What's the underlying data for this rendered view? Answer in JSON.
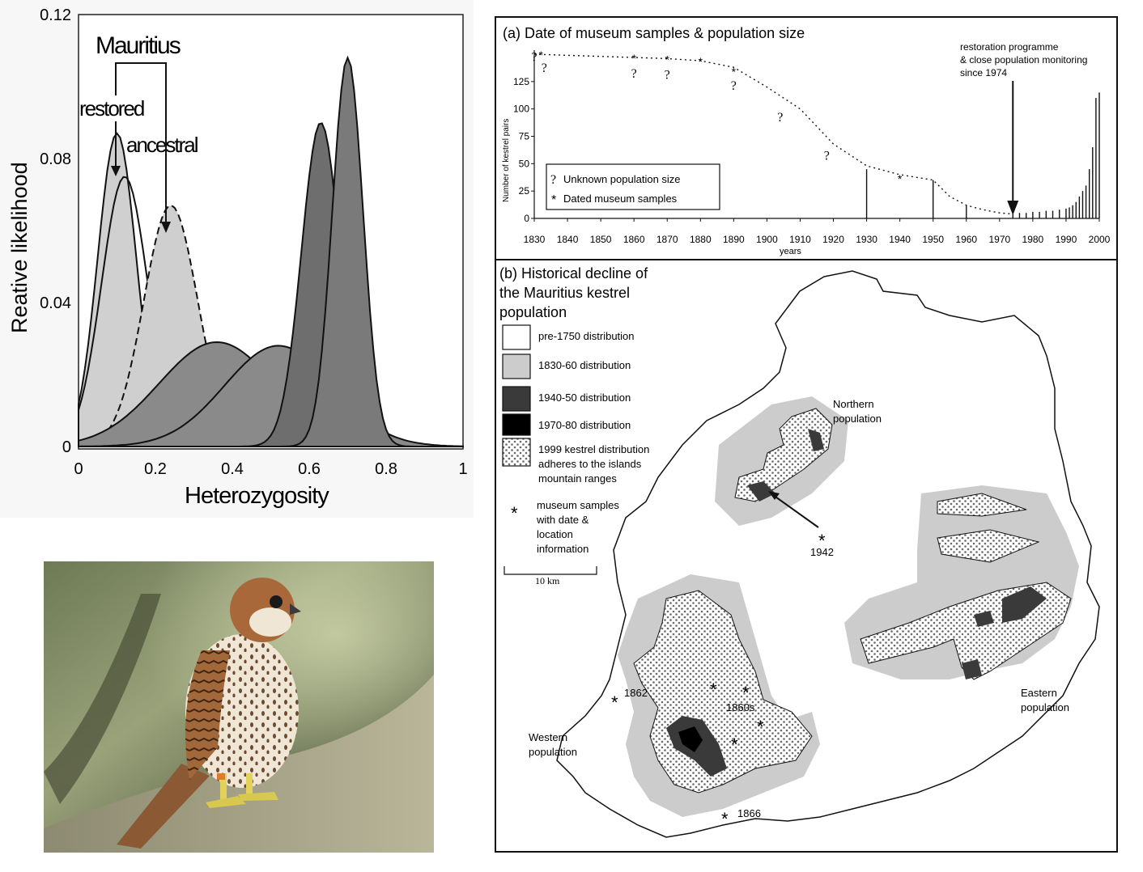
{
  "left_chart": {
    "chart_data": {
      "type": "area",
      "title": "",
      "xlabel": "Heterozygosity",
      "ylabel": "Reative likelihood",
      "xlim": [
        0,
        1
      ],
      "ylim": [
        0,
        0.12
      ],
      "x_ticks": [
        "0",
        "0.2",
        "0.4",
        "0.6",
        "0.8",
        "1"
      ],
      "y_ticks": [
        "0",
        "0.04",
        "0.08",
        "0.12"
      ],
      "series": [
        {
          "name": "restored",
          "peak_x": 0.1,
          "peak_y": 0.087,
          "color": "#d0d0d0"
        },
        {
          "name": "",
          "peak_x": 0.12,
          "peak_y": 0.075,
          "color": "none"
        },
        {
          "name": "ancestral",
          "peak_x": 0.24,
          "peak_y": 0.067,
          "color": "#cfcfcf",
          "dashed": true
        },
        {
          "name": "",
          "peak_x": 0.36,
          "peak_y": 0.029,
          "color": "#8a8a8a"
        },
        {
          "name": "",
          "peak_x": 0.52,
          "peak_y": 0.028,
          "color": "#8a8a8a"
        },
        {
          "name": "",
          "peak_x": 0.63,
          "peak_y": 0.09,
          "color": "#6e6e6e"
        },
        {
          "name": "",
          "peak_x": 0.7,
          "peak_y": 0.108,
          "color": "#7a7a7a"
        }
      ]
    },
    "group_label": "Mauritius",
    "label_restored": "restored",
    "label_ancestral": "ancestral"
  },
  "photo": {
    "subject": "kestrel-photo"
  },
  "panel_a": {
    "title": "(a)  Date of museum samples & population size",
    "ylabel": "Number of kestrel pairs",
    "xlabel": "years",
    "annotation": [
      "restoration programme",
      "& close population monitoring",
      "since 1974"
    ],
    "legend_unknown": "Unknown population size",
    "legend_dated": "Dated museum samples",
    "chart_data": {
      "type": "bar",
      "xlim": [
        1830,
        2000
      ],
      "ylim": [
        0,
        150
      ],
      "x_ticks": [
        "1830",
        "1840",
        "1850",
        "1860",
        "1870",
        "1880",
        "1890",
        "1900",
        "1910",
        "1920",
        "1930",
        "1940",
        "1950",
        "1960",
        "1970",
        "1980",
        "1990",
        "2000"
      ],
      "y_ticks": [
        "0",
        "25",
        "50",
        "75",
        "100",
        "125"
      ],
      "trend_x": [
        1830,
        1840,
        1850,
        1860,
        1870,
        1880,
        1890,
        1900,
        1910,
        1920,
        1930,
        1940,
        1950,
        1955,
        1960,
        1965,
        1970,
        1974
      ],
      "trend_y": [
        150,
        149,
        148,
        147,
        146,
        144,
        138,
        120,
        100,
        68,
        48,
        40,
        35,
        20,
        12,
        8,
        5,
        4
      ],
      "counts_x": [
        1930,
        1950,
        1960,
        1974,
        1976,
        1978,
        1980,
        1982,
        1984,
        1986,
        1988,
        1990,
        1991,
        1992,
        1993,
        1994,
        1995,
        1996,
        1997,
        1998,
        1999,
        2000
      ],
      "counts_y": [
        45,
        35,
        12,
        4,
        5,
        5,
        6,
        6,
        7,
        7,
        8,
        9,
        10,
        12,
        15,
        20,
        25,
        30,
        45,
        65,
        110,
        115
      ],
      "museum_samples_x": [
        1832,
        1860,
        1870,
        1880,
        1890,
        1940
      ],
      "museum_samples_y": [
        150,
        147,
        146,
        144,
        135,
        37
      ],
      "unknown_x": [
        1830,
        1833,
        1860,
        1870,
        1890,
        1904,
        1918
      ],
      "unknown_y": [
        148,
        138,
        133,
        132,
        122,
        93,
        58
      ],
      "arrow_x": 1974
    }
  },
  "panel_b": {
    "title": [
      "(b) Historical decline of",
      "the Mauritius kestrel",
      "population"
    ],
    "legend": [
      {
        "label": "pre-1750 distribution",
        "fill": "#ffffff"
      },
      {
        "label": "1830-60 distribution",
        "fill": "#cccccc"
      },
      {
        "label": "1940-50 distribution",
        "fill": "#3a3a3a"
      },
      {
        "label": "1970-80 distribution",
        "fill": "#000000"
      },
      {
        "label": [
          "1999 kestrel distribution",
          "adheres to  the islands",
          "mountain ranges"
        ],
        "fill": "dotted"
      }
    ],
    "legend_museum": [
      "museum samples",
      "with date &",
      "location",
      "information"
    ],
    "scale": "10 km",
    "pop_northern": [
      "Northern",
      "population"
    ],
    "pop_eastern": [
      "Eastern",
      "population"
    ],
    "pop_western": [
      "Western",
      "population"
    ],
    "sample_1942": "1942",
    "sample_1862": "1862",
    "sample_1860s": "1860s",
    "sample_1866": "1866"
  }
}
